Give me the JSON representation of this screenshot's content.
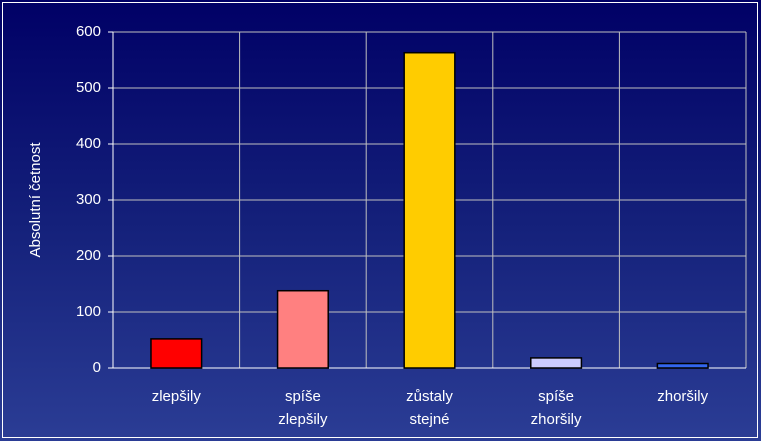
{
  "chart_data": {
    "type": "bar",
    "y_axis_label": "Absolutní četnost",
    "categories": [
      "zlepšily",
      "spíše zlepšily",
      "zůstaly stejné",
      "spíše zhoršily",
      "zhoršily"
    ],
    "values": [
      52,
      138,
      563,
      18,
      8
    ],
    "colors": [
      "#ff0000",
      "#ff8080",
      "#ffcc00",
      "#ccccff",
      "#3366ee"
    ],
    "ylim": [
      0,
      600
    ],
    "yticks": [
      0,
      100,
      200,
      300,
      400,
      500,
      600
    ],
    "grid": true
  }
}
